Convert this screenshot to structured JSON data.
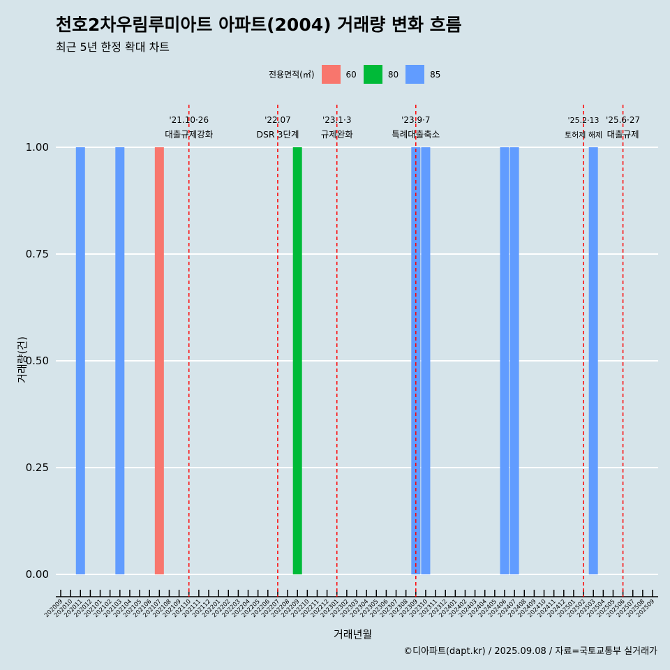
{
  "title": "천호2차우림루미아트 아파트(2004) 거래량 변화 흐름",
  "subtitle": "최근 5년 한정 확대 차트",
  "caption": "©디아파트(dapt.kr) / 2025.09.08 / 자료=국토교통부 실거래가",
  "legend": {
    "title": "전용면적(㎡)",
    "items": [
      {
        "label": "60",
        "color": "#f8766d"
      },
      {
        "label": "80",
        "color": "#00ba38"
      },
      {
        "label": "85",
        "color": "#619cff"
      }
    ]
  },
  "chart_data": {
    "type": "bar",
    "xlabel": "거래년월",
    "ylabel": "거래량(건)",
    "ylim": [
      0,
      1
    ],
    "yticks": [
      "0.00",
      "0.25",
      "0.50",
      "0.75",
      "1.00"
    ],
    "categories": [
      "202009",
      "202010",
      "202011",
      "202012",
      "202101",
      "202102",
      "202103",
      "202104",
      "202105",
      "202106",
      "202107",
      "202108",
      "202109",
      "202110",
      "202111",
      "202112",
      "202201",
      "202202",
      "202203",
      "202204",
      "202205",
      "202206",
      "202207",
      "202208",
      "202209",
      "202210",
      "202211",
      "202212",
      "202301",
      "202302",
      "202303",
      "202304",
      "202305",
      "202306",
      "202307",
      "202308",
      "202309",
      "202310",
      "202311",
      "202312",
      "202401",
      "202402",
      "202403",
      "202404",
      "202405",
      "202406",
      "202407",
      "202408",
      "202409",
      "202410",
      "202411",
      "202412",
      "202501",
      "202502",
      "202503",
      "202504",
      "202505",
      "202506",
      "202507",
      "202508",
      "202509"
    ],
    "bars": [
      {
        "month": "202011",
        "area": "85",
        "value": 1
      },
      {
        "month": "202103",
        "area": "85",
        "value": 1
      },
      {
        "month": "202107",
        "area": "60",
        "value": 1
      },
      {
        "month": "202209",
        "area": "80",
        "value": 1
      },
      {
        "month": "202309",
        "area": "85",
        "value": 1
      },
      {
        "month": "202310",
        "area": "85",
        "value": 1
      },
      {
        "month": "202406",
        "area": "85",
        "value": 1
      },
      {
        "month": "202407",
        "area": "85",
        "value": 1
      },
      {
        "month": "202503",
        "area": "85",
        "value": 1
      }
    ],
    "annotations": [
      {
        "month": "202110",
        "date": "'21.10·26",
        "label": "대출규제강화"
      },
      {
        "month": "202207",
        "date": "'22.07",
        "label": "DSR 3단계"
      },
      {
        "month": "202301",
        "date": "'23.1·3",
        "label": "규제완화"
      },
      {
        "month": "202309",
        "date": "'23.9·7",
        "label": "특례대출축소"
      },
      {
        "month": "202502",
        "date": "'25.2·13",
        "label": "토허제 해제"
      },
      {
        "month": "202506",
        "date": "'25.6·27",
        "label": "대출규제"
      }
    ]
  }
}
